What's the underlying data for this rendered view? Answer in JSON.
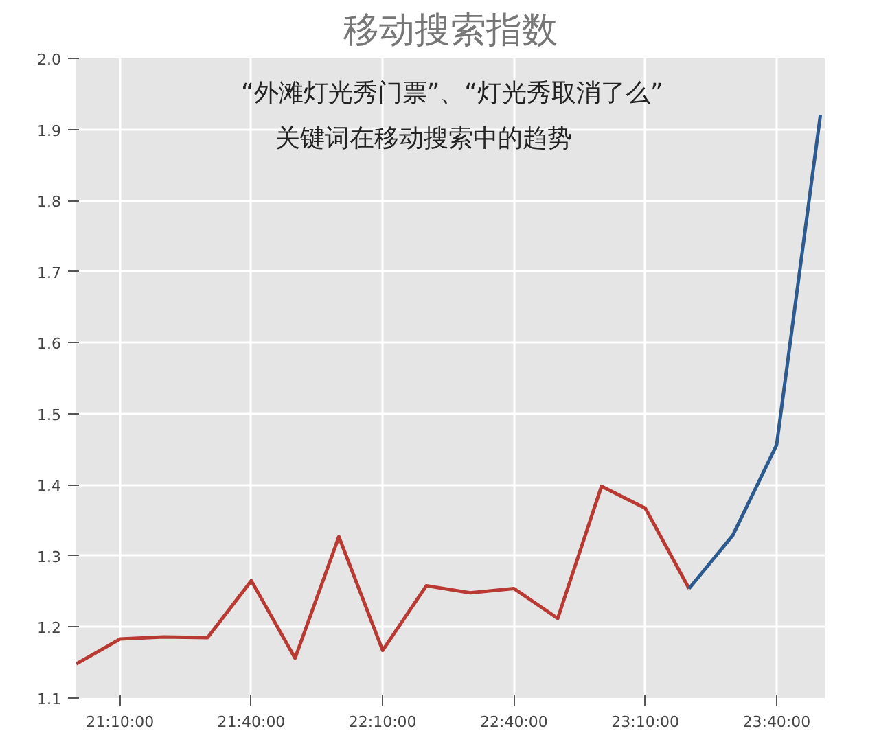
{
  "chart_data": {
    "type": "line",
    "title": "移动搜索指数",
    "annotations": [
      "“外滩灯光秀门票”、“灯光秀取消了么”",
      "关键词在移动搜索中的趋势"
    ],
    "series": [
      {
        "color": "#b83a33",
        "x": [
          21.0,
          21.1667,
          21.3333,
          21.5,
          21.6667,
          21.8333,
          22.0,
          22.1667,
          22.3333,
          22.5,
          22.6667,
          22.8333,
          23.0,
          23.1667,
          23.3333
        ],
        "values": [
          1.148,
          1.183,
          1.186,
          1.185,
          1.265,
          1.156,
          1.327,
          1.167,
          1.258,
          1.248,
          1.254,
          1.212,
          1.398,
          1.367,
          1.254
        ]
      },
      {
        "color": "#2e5b8f",
        "x": [
          23.3333,
          23.5,
          23.6667,
          23.8333
        ],
        "values": [
          1.254,
          1.329,
          1.456,
          1.92
        ]
      }
    ],
    "xlim": [
      21.0,
      23.85
    ],
    "ylim": [
      1.1,
      2.0
    ],
    "xticks": [
      {
        "value": 21.1667,
        "label": "21:10:00"
      },
      {
        "value": 21.6667,
        "label": "21:40:00"
      },
      {
        "value": 22.1667,
        "label": "22:10:00"
      },
      {
        "value": 22.6667,
        "label": "22:40:00"
      },
      {
        "value": 23.1667,
        "label": "23:10:00"
      },
      {
        "value": 23.6667,
        "label": "23:40:00"
      }
    ],
    "yticks": [
      1.1,
      1.2,
      1.3,
      1.4,
      1.5,
      1.6,
      1.7,
      1.8,
      1.9,
      {
        "value": 2,
        "label": "2.0"
      }
    ],
    "grid": true,
    "line_style": "solid",
    "marker": "none"
  }
}
